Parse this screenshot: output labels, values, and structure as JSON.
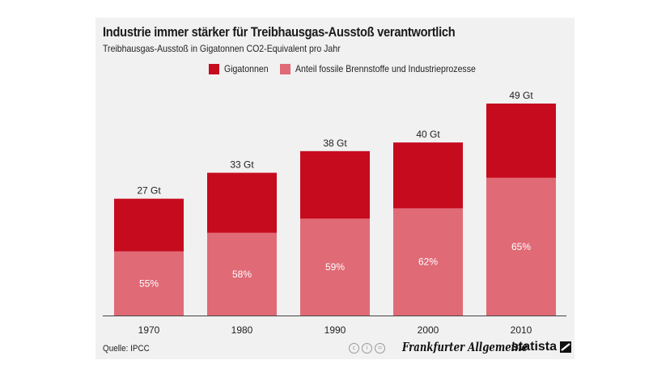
{
  "header": {
    "title": "Industrie immer stärker für Treibhausgas-Ausstoß verantwortlich",
    "subtitle": "Treibhausgas-Ausstoß in Gigatonnen CO2-Equivalent pro Jahr"
  },
  "legend": {
    "total_label": "Gigatonnen",
    "share_label": "Anteil fossile Brennstoffe und Industrieprozesse"
  },
  "footer": {
    "source": "Quelle: IPCC",
    "faz_logo_text": "Frankfurter Allgemeine",
    "statista_logo_text": "statista"
  },
  "colors": {
    "total": "#c60b1e",
    "share": "#e06a76",
    "background": "#f1f1f1"
  },
  "chart_data": {
    "type": "bar",
    "stacked": "overlay",
    "title": "Industrie immer stärker für Treibhausgas-Ausstoß verantwortlich",
    "subtitle": "Treibhausgas-Ausstoß in Gigatonnen CO2-Equivalent pro Jahr",
    "categories": [
      "1970",
      "1980",
      "1990",
      "2000",
      "2010"
    ],
    "series": [
      {
        "name": "Gigatonnen",
        "values": [
          27,
          33,
          38,
          40,
          49
        ],
        "labels": [
          "27 Gt",
          "33 Gt",
          "38 Gt",
          "40 Gt",
          "49 Gt"
        ]
      },
      {
        "name": "Anteil fossile Brennstoffe und Industrieprozesse",
        "values": [
          55,
          58,
          59,
          62,
          65
        ],
        "unit": "% of total",
        "labels": [
          "55%",
          "58%",
          "59%",
          "62%",
          "65%"
        ]
      }
    ],
    "ylim": [
      0,
      49
    ],
    "grid": false,
    "legend_position": "top"
  }
}
